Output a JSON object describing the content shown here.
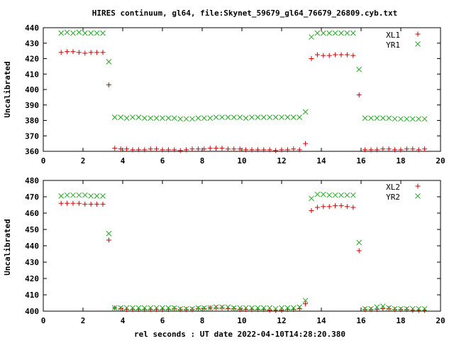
{
  "title": "HIRES continuum, gl64, file:Skynet_59679_gl64_76679_26809.cyb.txt",
  "xlabel": "rel seconds : UT date 2022-04-10T14:28:20.380",
  "colors": {
    "red": "#cc0000",
    "green": "#22aa22"
  },
  "chart_data": [
    {
      "type": "scatter",
      "ylabel": "Uncalibrated",
      "xlim": [
        0,
        20
      ],
      "ylim": [
        360,
        440
      ],
      "xticks": [
        "0",
        "2",
        "4",
        "6",
        "8",
        "10",
        "12",
        "14",
        "16",
        "18",
        "20"
      ],
      "yticks": [
        "360",
        "370",
        "380",
        "390",
        "400",
        "410",
        "420",
        "430",
        "440"
      ],
      "legend_position": "top-right",
      "grid": false,
      "series": [
        {
          "name": "XL1",
          "marker": "plus",
          "color": "#cc0000",
          "x": [
            0.9,
            1.2,
            1.5,
            1.8,
            2.1,
            2.4,
            2.7,
            3.0,
            3.3,
            3.6,
            3.9,
            4.2,
            4.5,
            4.8,
            5.1,
            5.4,
            5.7,
            6.0,
            6.3,
            6.6,
            6.9,
            7.2,
            7.5,
            7.8,
            8.1,
            8.4,
            8.7,
            9.0,
            9.3,
            9.6,
            9.9,
            10.2,
            10.5,
            10.8,
            11.1,
            11.4,
            11.7,
            12.0,
            12.3,
            12.6,
            12.9,
            13.2,
            13.5,
            13.8,
            14.1,
            14.4,
            14.7,
            15.0,
            15.3,
            15.6,
            15.9,
            16.2,
            16.5,
            16.8,
            17.1,
            17.4,
            17.7,
            18.0,
            18.3,
            18.6,
            18.9,
            19.2
          ],
          "y": [
            424,
            424.5,
            424.5,
            424,
            423.5,
            424,
            424,
            424,
            403,
            362,
            361.5,
            361.5,
            361,
            361,
            361,
            361.5,
            361.5,
            361,
            361,
            361,
            360.5,
            361,
            361.5,
            361.5,
            361.5,
            362,
            362,
            362,
            361.5,
            361.5,
            361.5,
            361,
            361,
            361,
            361,
            361,
            360.5,
            361,
            361,
            361.5,
            361,
            365,
            420,
            422.5,
            422,
            422,
            422.5,
            422.5,
            422.5,
            422,
            396.5,
            361,
            361,
            361,
            361.5,
            361.5,
            361,
            361,
            361.5,
            361.5,
            361,
            361.5
          ]
        },
        {
          "name": "YR1",
          "marker": "cross",
          "color": "#22aa22",
          "x": [
            0.9,
            1.2,
            1.5,
            1.8,
            2.1,
            2.4,
            2.7,
            3.0,
            3.3,
            3.6,
            3.9,
            4.2,
            4.5,
            4.8,
            5.1,
            5.4,
            5.7,
            6.0,
            6.3,
            6.6,
            6.9,
            7.2,
            7.5,
            7.8,
            8.1,
            8.4,
            8.7,
            9.0,
            9.3,
            9.6,
            9.9,
            10.2,
            10.5,
            10.8,
            11.1,
            11.4,
            11.7,
            12.0,
            12.3,
            12.6,
            12.9,
            13.2,
            13.5,
            13.8,
            14.1,
            14.4,
            14.7,
            15.0,
            15.3,
            15.6,
            15.9,
            16.2,
            16.5,
            16.8,
            17.1,
            17.4,
            17.7,
            18.0,
            18.3,
            18.6,
            18.9,
            19.2
          ],
          "y": [
            436.5,
            437,
            436.5,
            437,
            436.5,
            436.5,
            436.5,
            436.5,
            418,
            382,
            382,
            381.5,
            382,
            382,
            381.5,
            381.5,
            381.5,
            381.5,
            381.5,
            381.5,
            381,
            381,
            381,
            381.5,
            381.5,
            381.5,
            382,
            382,
            382,
            382,
            382,
            381.5,
            382,
            382,
            382,
            382,
            382,
            382,
            382,
            382,
            382,
            385.5,
            434,
            436.5,
            436.5,
            436.5,
            436.5,
            436.5,
            436.5,
            436.5,
            413,
            381.5,
            381.5,
            381.5,
            381.5,
            381.5,
            381,
            381,
            381,
            381,
            381,
            381
          ]
        }
      ]
    },
    {
      "type": "scatter",
      "ylabel": "Uncalibrated",
      "xlim": [
        0,
        20
      ],
      "ylim": [
        400,
        480
      ],
      "xticks": [
        "0",
        "2",
        "4",
        "6",
        "8",
        "10",
        "12",
        "14",
        "16",
        "18",
        "20"
      ],
      "yticks": [
        "400",
        "410",
        "420",
        "430",
        "440",
        "450",
        "460",
        "470",
        "480"
      ],
      "legend_position": "top-right",
      "grid": false,
      "series": [
        {
          "name": "XL2",
          "marker": "plus",
          "color": "#cc0000",
          "x": [
            0.9,
            1.2,
            1.5,
            1.8,
            2.1,
            2.4,
            2.7,
            3.0,
            3.3,
            3.6,
            3.9,
            4.2,
            4.5,
            4.8,
            5.1,
            5.4,
            5.7,
            6.0,
            6.3,
            6.6,
            6.9,
            7.2,
            7.5,
            7.8,
            8.1,
            8.4,
            8.7,
            9.0,
            9.3,
            9.6,
            9.9,
            10.2,
            10.5,
            10.8,
            11.1,
            11.4,
            11.7,
            12.0,
            12.3,
            12.6,
            12.9,
            13.2,
            13.5,
            13.8,
            14.1,
            14.4,
            14.7,
            15.0,
            15.3,
            15.6,
            15.9,
            16.2,
            16.5,
            16.8,
            17.1,
            17.4,
            17.7,
            18.0,
            18.3,
            18.6,
            18.9,
            19.2
          ],
          "y": [
            466,
            466,
            466,
            466,
            465.5,
            465.5,
            465.5,
            465.5,
            443.5,
            402,
            401.5,
            401,
            401,
            401,
            401,
            401,
            401,
            401,
            401,
            401.5,
            401,
            401,
            401,
            401.5,
            401.5,
            402,
            402,
            402,
            401.5,
            401.5,
            401,
            401,
            401,
            401,
            401,
            400.5,
            400.5,
            400.5,
            401,
            401,
            401.5,
            404.5,
            461.5,
            463.5,
            464,
            464,
            464.5,
            464.5,
            464,
            463.5,
            437,
            401,
            401,
            401,
            401.5,
            401.5,
            401,
            401,
            401,
            400.5,
            400.5,
            400.5
          ]
        },
        {
          "name": "YR2",
          "marker": "cross",
          "color": "#22aa22",
          "x": [
            0.9,
            1.2,
            1.5,
            1.8,
            2.1,
            2.4,
            2.7,
            3.0,
            3.3,
            3.6,
            3.9,
            4.2,
            4.5,
            4.8,
            5.1,
            5.4,
            5.7,
            6.0,
            6.3,
            6.6,
            6.9,
            7.2,
            7.5,
            7.8,
            8.1,
            8.4,
            8.7,
            9.0,
            9.3,
            9.6,
            9.9,
            10.2,
            10.5,
            10.8,
            11.1,
            11.4,
            11.7,
            12.0,
            12.3,
            12.6,
            12.9,
            13.2,
            13.5,
            13.8,
            14.1,
            14.4,
            14.7,
            15.0,
            15.3,
            15.6,
            15.9,
            16.2,
            16.5,
            16.8,
            17.1,
            17.4,
            17.7,
            18.0,
            18.3,
            18.6,
            18.9,
            19.2
          ],
          "y": [
            470.5,
            471,
            471,
            471,
            471,
            470.5,
            470.5,
            470.5,
            447.5,
            402,
            402,
            402,
            402,
            402,
            402,
            402,
            402,
            402,
            402,
            402,
            401.5,
            401.5,
            401.5,
            402,
            402,
            402,
            402.5,
            402.5,
            402.5,
            402,
            402,
            402,
            402,
            402,
            402,
            402,
            401.5,
            402,
            402,
            402,
            402.5,
            406.5,
            469,
            471.5,
            471.5,
            471,
            471,
            471,
            471,
            471,
            442,
            401.5,
            401.5,
            402.5,
            403,
            402,
            401.5,
            401.5,
            401.5,
            401.5,
            401.5,
            401.5
          ]
        }
      ]
    }
  ]
}
